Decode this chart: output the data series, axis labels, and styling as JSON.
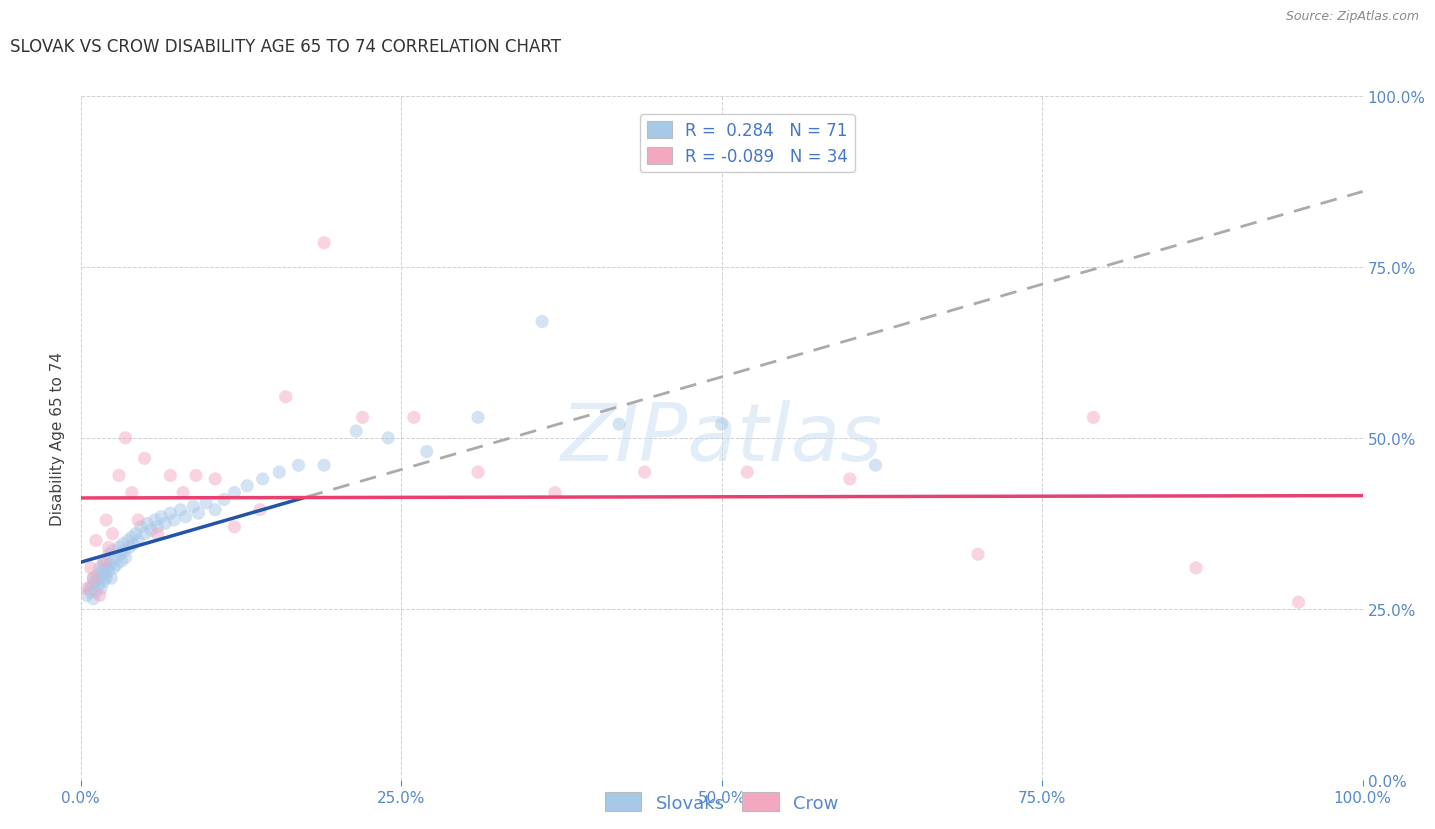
{
  "title": "SLOVAK VS CROW DISABILITY AGE 65 TO 74 CORRELATION CHART",
  "source": "Source: ZipAtlas.com",
  "ylabel": "Disability Age 65 to 74",
  "r_slovak": 0.284,
  "n_slovak": 71,
  "r_crow": -0.089,
  "n_crow": 34,
  "slovak_color": "#a8c8e8",
  "crow_color": "#f4a8c0",
  "slovak_line_color": "#2255aa",
  "crow_line_color": "#e84070",
  "trendline_ext_color": "#aaaaaa",
  "xlim": [
    0.0,
    1.0
  ],
  "ylim": [
    0.0,
    1.0
  ],
  "xtick_vals": [
    0.0,
    0.25,
    0.5,
    0.75,
    1.0
  ],
  "xtick_labels": [
    "0.0%",
    "25.0%",
    "50.0%",
    "75.0%",
    "100.0%"
  ],
  "ytick_vals": [
    0.0,
    0.25,
    0.5,
    0.75,
    1.0
  ],
  "ytick_labels_right": [
    "0.0%",
    "25.0%",
    "50.0%",
    "75.0%",
    "100.0%"
  ],
  "slovak_x": [
    0.005,
    0.007,
    0.008,
    0.009,
    0.01,
    0.01,
    0.011,
    0.012,
    0.013,
    0.014,
    0.015,
    0.015,
    0.016,
    0.017,
    0.018,
    0.018,
    0.019,
    0.02,
    0.02,
    0.021,
    0.022,
    0.022,
    0.023,
    0.024,
    0.025,
    0.026,
    0.027,
    0.028,
    0.03,
    0.031,
    0.032,
    0.033,
    0.034,
    0.035,
    0.037,
    0.038,
    0.04,
    0.041,
    0.043,
    0.045,
    0.047,
    0.05,
    0.052,
    0.055,
    0.058,
    0.06,
    0.063,
    0.066,
    0.07,
    0.073,
    0.078,
    0.082,
    0.088,
    0.092,
    0.098,
    0.105,
    0.112,
    0.12,
    0.13,
    0.142,
    0.155,
    0.17,
    0.19,
    0.215,
    0.24,
    0.27,
    0.31,
    0.36,
    0.42,
    0.5,
    0.62
  ],
  "slovak_y": [
    0.27,
    0.28,
    0.275,
    0.285,
    0.295,
    0.265,
    0.29,
    0.275,
    0.3,
    0.285,
    0.31,
    0.295,
    0.28,
    0.305,
    0.315,
    0.29,
    0.3,
    0.32,
    0.295,
    0.31,
    0.33,
    0.305,
    0.315,
    0.295,
    0.335,
    0.31,
    0.325,
    0.315,
    0.34,
    0.33,
    0.32,
    0.345,
    0.335,
    0.325,
    0.35,
    0.34,
    0.355,
    0.345,
    0.36,
    0.35,
    0.37,
    0.36,
    0.375,
    0.365,
    0.38,
    0.37,
    0.385,
    0.375,
    0.39,
    0.38,
    0.395,
    0.385,
    0.4,
    0.39,
    0.405,
    0.395,
    0.41,
    0.42,
    0.43,
    0.44,
    0.45,
    0.46,
    0.46,
    0.51,
    0.5,
    0.48,
    0.53,
    0.67,
    0.52,
    0.52,
    0.46
  ],
  "crow_x": [
    0.005,
    0.008,
    0.01,
    0.012,
    0.015,
    0.018,
    0.02,
    0.022,
    0.025,
    0.03,
    0.035,
    0.04,
    0.045,
    0.05,
    0.06,
    0.07,
    0.08,
    0.09,
    0.105,
    0.12,
    0.14,
    0.16,
    0.19,
    0.22,
    0.26,
    0.31,
    0.37,
    0.44,
    0.52,
    0.6,
    0.7,
    0.79,
    0.87,
    0.95
  ],
  "crow_y": [
    0.28,
    0.31,
    0.295,
    0.35,
    0.27,
    0.32,
    0.38,
    0.34,
    0.36,
    0.445,
    0.5,
    0.42,
    0.38,
    0.47,
    0.36,
    0.445,
    0.42,
    0.445,
    0.44,
    0.37,
    0.395,
    0.56,
    0.785,
    0.53,
    0.53,
    0.45,
    0.42,
    0.45,
    0.45,
    0.44,
    0.33,
    0.53,
    0.31,
    0.26
  ],
  "background_color": "#ffffff",
  "grid_color": "#cccccc",
  "title_fontsize": 12,
  "axis_label_fontsize": 11,
  "tick_fontsize": 11,
  "legend_fontsize": 12,
  "marker_size": 90,
  "marker_alpha": 0.5
}
